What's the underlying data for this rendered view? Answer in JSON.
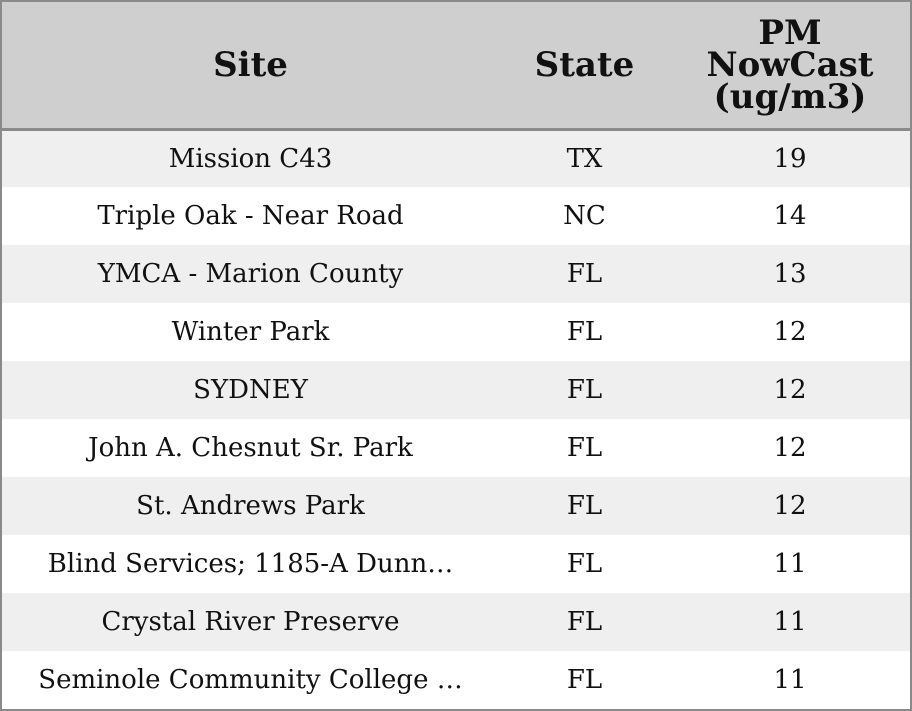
{
  "chart_data": {
    "type": "table",
    "columns": [
      "Site",
      "State",
      "PM NowCast (ug/m3)"
    ],
    "header_lines": {
      "site": [
        "Site"
      ],
      "state": [
        "State"
      ],
      "pm": [
        "PM",
        "NowCast",
        "(ug/m3)"
      ]
    },
    "rows": [
      {
        "site": "Mission C43",
        "state": "TX",
        "pm": 19
      },
      {
        "site": "Triple Oak - Near Road",
        "state": "NC",
        "pm": 14
      },
      {
        "site": "YMCA - Marion County",
        "state": "FL",
        "pm": 13
      },
      {
        "site": "Winter Park",
        "state": "FL",
        "pm": 12
      },
      {
        "site": "SYDNEY",
        "state": "FL",
        "pm": 12
      },
      {
        "site": "John A. Chesnut Sr. Park",
        "state": "FL",
        "pm": 12
      },
      {
        "site": "St. Andrews Park",
        "state": "FL",
        "pm": 12
      },
      {
        "site": "Blind Services; 1185-A Dunn…",
        "state": "FL",
        "pm": 11
      },
      {
        "site": "Crystal River Preserve",
        "state": "FL",
        "pm": 11
      },
      {
        "site": "Seminole Community College …",
        "state": "FL",
        "pm": 11
      }
    ]
  },
  "colors": {
    "header_background": "#cfcfcf",
    "stripe_background": "#efefef",
    "row_background": "#ffffff",
    "border": "#8a8a8a",
    "text": "#111111"
  }
}
